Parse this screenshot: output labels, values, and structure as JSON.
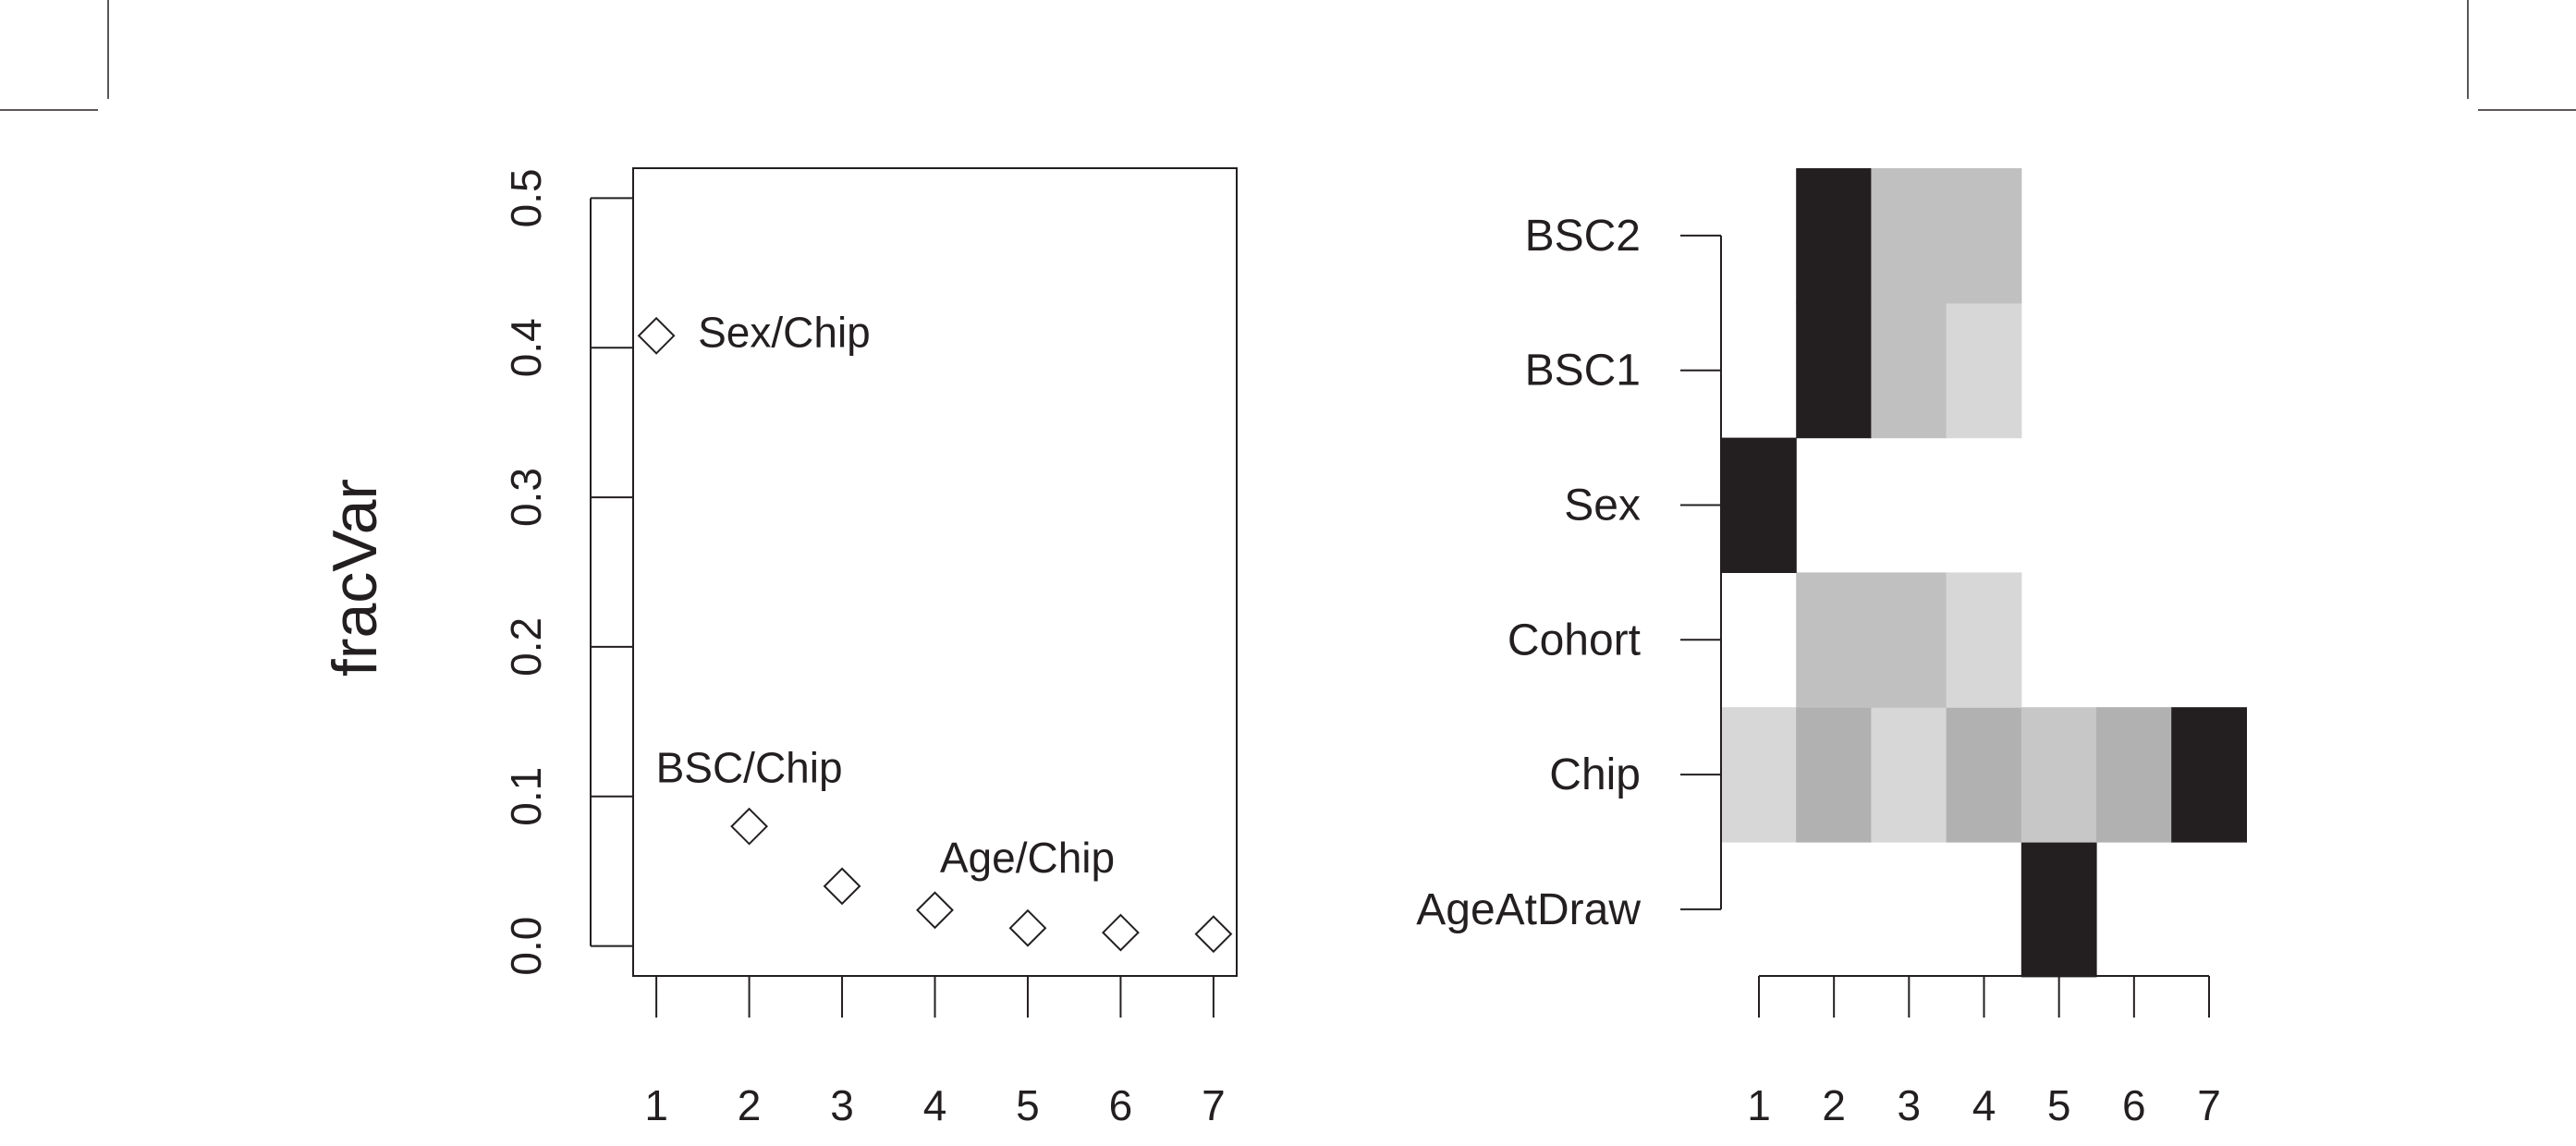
{
  "chart_data": [
    {
      "type": "scatter",
      "title": "",
      "xlabel": "",
      "ylabel": "fracVar",
      "xlim": [
        0.75,
        7.25
      ],
      "ylim": [
        -0.02,
        0.52
      ],
      "x": [
        1,
        2,
        3,
        4,
        5,
        6,
        7
      ],
      "y": [
        0.408,
        0.08,
        0.04,
        0.024,
        0.012,
        0.009,
        0.008
      ],
      "x_ticks": [
        "1",
        "2",
        "3",
        "4",
        "5",
        "6",
        "7"
      ],
      "y_ticks": [
        "0.0",
        "0.1",
        "0.2",
        "0.3",
        "0.4",
        "0.5"
      ],
      "marker": "open-diamond",
      "annotations": [
        {
          "text": "Sex/Chip",
          "x": 1,
          "y": 0.408
        },
        {
          "text": "BSC/Chip",
          "x": 2,
          "y": 0.08
        },
        {
          "text": "Age/Chip",
          "x": 4,
          "y": 0.024
        }
      ]
    },
    {
      "type": "heatmap",
      "x_categories": [
        "1",
        "2",
        "3",
        "4",
        "5",
        "6",
        "7"
      ],
      "y_categories": [
        "AgeAtDraw",
        "Chip",
        "Cohort",
        "Sex",
        "BSC1",
        "BSC2"
      ],
      "values": [
        [
          0,
          0,
          0,
          0,
          1.0,
          0,
          0
        ],
        [
          0.18,
          0.35,
          0.18,
          0.35,
          0.25,
          0.35,
          1.0
        ],
        [
          0,
          0.28,
          0.28,
          0.18,
          0,
          0,
          0
        ],
        [
          1.0,
          0,
          0,
          0,
          0,
          0,
          0
        ],
        [
          0,
          1.0,
          0.28,
          0.18,
          0,
          0,
          0
        ],
        [
          0,
          1.0,
          0.28,
          0.28,
          0,
          0,
          0
        ]
      ],
      "colormap": [
        "#ffffff",
        "#231f20"
      ]
    }
  ]
}
